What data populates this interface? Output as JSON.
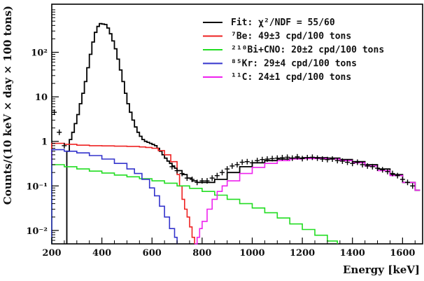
{
  "chart_data": {
    "type": "line",
    "xlabel": "Energy [keV]",
    "ylabel": "Counts/(10 keV × day × 100 tons)",
    "xlim": [
      200,
      1680
    ],
    "ylim": [
      0.005,
      1200
    ],
    "ylog": true,
    "grid": false,
    "legend_position": "top-right",
    "xticks": [
      200,
      400,
      600,
      800,
      1000,
      1200,
      1400,
      1600
    ],
    "xtick_labels": [
      "200",
      "400",
      "600",
      "800",
      "1000",
      "1200",
      "1400",
      "1600"
    ],
    "yticks": [
      0.01,
      0.1,
      1,
      10,
      100
    ],
    "ytick_labels": [
      "10⁻²",
      "10⁻¹",
      "1",
      "10",
      "10²"
    ],
    "series": [
      {
        "name": "Fit: χ²/NDF = 55/60",
        "color": "#000000",
        "style": "step",
        "x": [
          260,
          270,
          280,
          290,
          300,
          310,
          320,
          330,
          340,
          350,
          360,
          370,
          380,
          390,
          400,
          410,
          420,
          430,
          440,
          450,
          460,
          470,
          480,
          490,
          500,
          510,
          520,
          530,
          540,
          550,
          560,
          570,
          580,
          590,
          600,
          610,
          620,
          630,
          640,
          650,
          660,
          670,
          680,
          690,
          700,
          720,
          740,
          760,
          780,
          800,
          850,
          900,
          950,
          1000,
          1050,
          1100,
          1150,
          1200,
          1250,
          1300,
          1350,
          1400,
          1450,
          1500,
          1550,
          1600,
          1650,
          1670
        ],
        "y": [
          0.6,
          1.1,
          1.6,
          2.5,
          4,
          7,
          12,
          22,
          45,
          90,
          170,
          280,
          380,
          440,
          430,
          420,
          350,
          260,
          180,
          120,
          70,
          40,
          22,
          12,
          7,
          4.5,
          3,
          2.1,
          1.6,
          1.3,
          1.1,
          1.0,
          0.95,
          0.9,
          0.85,
          0.8,
          0.7,
          0.6,
          0.5,
          0.42,
          0.36,
          0.32,
          0.28,
          0.25,
          0.22,
          0.18,
          0.15,
          0.13,
          0.12,
          0.12,
          0.14,
          0.2,
          0.27,
          0.33,
          0.37,
          0.4,
          0.42,
          0.43,
          0.43,
          0.42,
          0.39,
          0.35,
          0.3,
          0.24,
          0.18,
          0.12,
          0.08,
          0.08
        ]
      },
      {
        "name": "⁷Be: 49±3 cpd/100 tons",
        "color": "#ee2222",
        "style": "step",
        "x": [
          200,
          250,
          300,
          350,
          400,
          450,
          500,
          550,
          575,
          600,
          625,
          650,
          675,
          700,
          710,
          720,
          730,
          740,
          750,
          760,
          770
        ],
        "y": [
          0.9,
          0.86,
          0.82,
          0.8,
          0.79,
          0.78,
          0.77,
          0.75,
          0.73,
          0.7,
          0.62,
          0.5,
          0.35,
          0.18,
          0.1,
          0.05,
          0.03,
          0.02,
          0.012,
          0.007,
          0.005
        ]
      },
      {
        "name": "²¹⁰Bi+CNO: 20±2 cpd/100 tons",
        "color": "#22dd22",
        "style": "step",
        "x": [
          200,
          250,
          300,
          350,
          400,
          450,
          500,
          550,
          600,
          650,
          700,
          750,
          800,
          850,
          900,
          950,
          1000,
          1050,
          1100,
          1150,
          1200,
          1250,
          1300,
          1340
        ],
        "y": [
          0.3,
          0.27,
          0.24,
          0.215,
          0.195,
          0.175,
          0.16,
          0.145,
          0.13,
          0.115,
          0.1,
          0.088,
          0.075,
          0.062,
          0.05,
          0.04,
          0.032,
          0.025,
          0.019,
          0.014,
          0.0105,
          0.0078,
          0.0058,
          0.005
        ]
      },
      {
        "name": "⁸⁵Kr: 29±4 cpd/100 tons",
        "color": "#3333cc",
        "style": "step",
        "x": [
          200,
          250,
          300,
          350,
          400,
          450,
          500,
          530,
          560,
          590,
          610,
          630,
          650,
          670,
          690,
          700
        ],
        "y": [
          0.65,
          0.6,
          0.55,
          0.48,
          0.4,
          0.32,
          0.24,
          0.19,
          0.14,
          0.09,
          0.06,
          0.035,
          0.02,
          0.011,
          0.007,
          0.005
        ]
      },
      {
        "name": "¹¹C: 24±1 cpd/100 tons",
        "color": "#ee22ee",
        "style": "step",
        "x": [
          770,
          780,
          790,
          800,
          820,
          840,
          860,
          880,
          900,
          950,
          1000,
          1050,
          1100,
          1150,
          1200,
          1250,
          1300,
          1350,
          1400,
          1450,
          1500,
          1550,
          1600,
          1650,
          1670
        ],
        "y": [
          0.005,
          0.007,
          0.011,
          0.016,
          0.03,
          0.05,
          0.075,
          0.1,
          0.13,
          0.19,
          0.26,
          0.32,
          0.37,
          0.4,
          0.41,
          0.41,
          0.4,
          0.37,
          0.33,
          0.28,
          0.22,
          0.17,
          0.12,
          0.08,
          0.08
        ]
      }
    ],
    "data_points": {
      "name": "data",
      "color": "#000000",
      "x": [
        210,
        230,
        250,
        680,
        700,
        720,
        740,
        760,
        780,
        800,
        820,
        840,
        860,
        880,
        900,
        920,
        940,
        960,
        980,
        1000,
        1020,
        1040,
        1060,
        1080,
        1100,
        1120,
        1140,
        1160,
        1180,
        1200,
        1220,
        1240,
        1260,
        1280,
        1300,
        1320,
        1340,
        1360,
        1380,
        1400,
        1420,
        1440,
        1460,
        1480,
        1500,
        1520,
        1540,
        1560,
        1580,
        1600,
        1620,
        1640
      ],
      "y": [
        4.5,
        1.6,
        0.8,
        0.27,
        0.22,
        0.19,
        0.15,
        0.14,
        0.12,
        0.13,
        0.13,
        0.15,
        0.17,
        0.2,
        0.24,
        0.28,
        0.3,
        0.34,
        0.35,
        0.33,
        0.37,
        0.39,
        0.4,
        0.41,
        0.42,
        0.43,
        0.44,
        0.42,
        0.45,
        0.41,
        0.43,
        0.44,
        0.42,
        0.4,
        0.39,
        0.4,
        0.37,
        0.36,
        0.34,
        0.32,
        0.34,
        0.3,
        0.28,
        0.27,
        0.25,
        0.23,
        0.21,
        0.19,
        0.17,
        0.14,
        0.12,
        0.1
      ]
    }
  }
}
